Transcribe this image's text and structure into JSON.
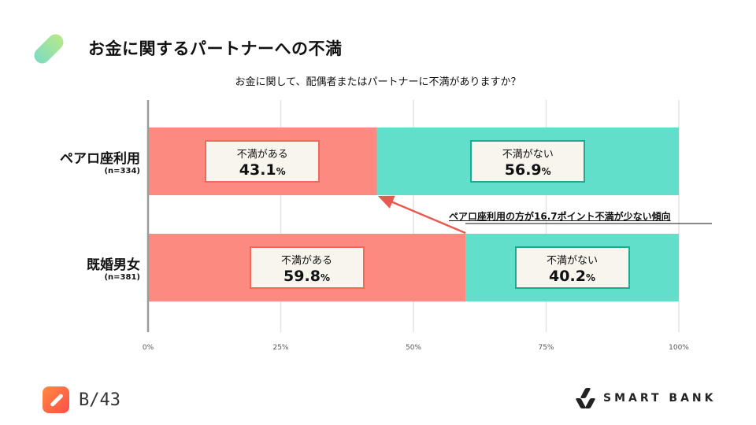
{
  "title": "お金に関するパートナーへの不満",
  "question": "お金に関して、配偶者またはパートナーに不満がありますか？",
  "annotation": "ペアロ座利用の方が16.7ポイント不満が少ない傾向",
  "colors": {
    "dissatisfied": "#fd8a80",
    "satisfied": "#62dfca",
    "red_border": "#f0695a",
    "teal_border": "#1fa98f",
    "arrow": "#e85a4f"
  },
  "chart_data": {
    "type": "bar",
    "orientation": "horizontal",
    "stacked": true,
    "categories": [
      {
        "name": "ペアロ座利用",
        "n": "(n=334)"
      },
      {
        "name": "既婚男女",
        "n": "(n=381)"
      }
    ],
    "series": [
      {
        "name": "不満がある",
        "values": [
          43.1,
          59.8
        ]
      },
      {
        "name": "不満がない",
        "values": [
          56.9,
          40.2
        ]
      }
    ],
    "xlim": [
      0,
      100
    ],
    "xticks": [
      "0%",
      "25%",
      "50%",
      "75%",
      "100%"
    ],
    "unit": "%"
  },
  "footer": {
    "left_logo": "B/43",
    "right_logo": "SMART BANK"
  }
}
